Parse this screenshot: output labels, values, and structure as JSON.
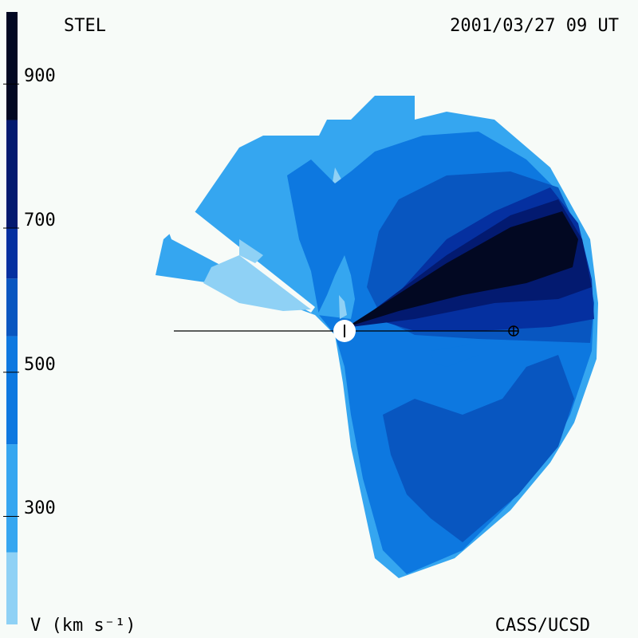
{
  "header": {
    "observatory": "STEL",
    "datetime": "2001/03/27 09 UT"
  },
  "footer": {
    "unit_label": "V (km s⁻¹)",
    "credit": "CASS/UCSD"
  },
  "colorbar": {
    "min": 150,
    "max": 1000,
    "ticks": [
      {
        "value": 300,
        "label": "300"
      },
      {
        "value": 500,
        "label": "500"
      },
      {
        "value": 700,
        "label": "700"
      },
      {
        "value": 900,
        "label": "900"
      }
    ],
    "bands": [
      {
        "from": 150,
        "to": 250,
        "color": "#8fd1f5"
      },
      {
        "from": 250,
        "to": 400,
        "color": "#35a6f0"
      },
      {
        "from": 400,
        "to": 550,
        "color": "#0d78e0"
      },
      {
        "from": 550,
        "to": 630,
        "color": "#0856c0"
      },
      {
        "from": 630,
        "to": 700,
        "color": "#0530a0"
      },
      {
        "from": 700,
        "to": 850,
        "color": "#031a70"
      },
      {
        "from": 850,
        "to": 1000,
        "color": "#020822"
      }
    ]
  },
  "map_colors": {
    "v1": "#8fd1f5",
    "v2": "#35a6f0",
    "v3": "#0d78e0",
    "v4": "#0856c0",
    "v5": "#0530a0",
    "v6": "#031a70",
    "v7": "#020822",
    "background": "#f7fbf8",
    "sun": "#ffffff"
  }
}
